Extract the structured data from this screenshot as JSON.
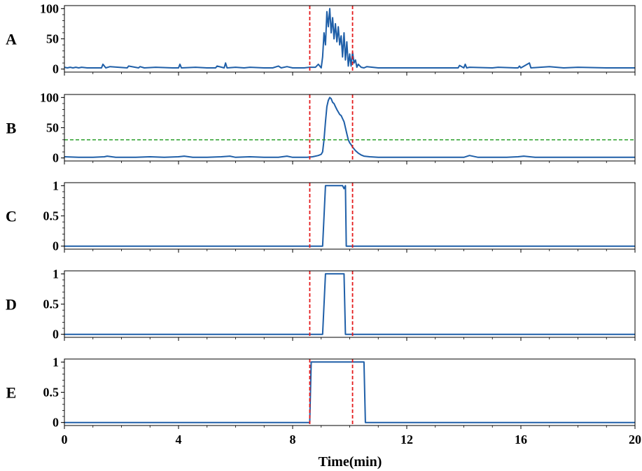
{
  "chart_data": {
    "type": "line",
    "xlabel": "Time(min)",
    "xlim": [
      0,
      20
    ],
    "xticks": [
      0,
      4,
      8,
      12,
      16,
      20
    ],
    "xtick_labels": [
      "0",
      "4",
      "8",
      "12",
      "16",
      "20"
    ],
    "vlines": {
      "x": [
        8.6,
        10.1
      ],
      "color": "#e41a1c",
      "style": "dashed"
    },
    "line_color": "#1f5fa8",
    "panels": [
      {
        "label": "A",
        "ylim": [
          -5,
          105
        ],
        "yticks": [
          0,
          50,
          100
        ],
        "ytick_labels": [
          "0",
          "50",
          "100"
        ],
        "series": [
          {
            "x": [
              0,
              0.1,
              0.2,
              0.3,
              0.4,
              0.5,
              0.6,
              0.8,
              1.0,
              1.3,
              1.35,
              1.45,
              1.6,
              2.2,
              2.25,
              2.6,
              2.65,
              2.8,
              3.2,
              3.8,
              4.0,
              4.05,
              4.1,
              4.6,
              5.0,
              5.3,
              5.35,
              5.6,
              5.65,
              5.7,
              6.0,
              6.3,
              6.5,
              7.0,
              7.3,
              7.5,
              7.6,
              7.8,
              8.0,
              8.4,
              8.6,
              8.8,
              8.9,
              9.0,
              9.05,
              9.1,
              9.15,
              9.2,
              9.25,
              9.3,
              9.35,
              9.4,
              9.45,
              9.5,
              9.55,
              9.6,
              9.65,
              9.7,
              9.75,
              9.8,
              9.85,
              9.9,
              9.95,
              10.0,
              10.05,
              10.1,
              10.15,
              10.2,
              10.25,
              10.3,
              10.4,
              10.5,
              10.6,
              11.0,
              12.0,
              13.0,
              13.8,
              13.85,
              14.0,
              14.05,
              14.1,
              14.2,
              15.0,
              15.2,
              15.8,
              15.9,
              15.95,
              16.0,
              16.3,
              16.35,
              17.0,
              17.5,
              18.0,
              19.0,
              20.0
            ],
            "y": [
              3,
              2,
              3,
              2,
              3,
              2,
              3,
              2,
              2,
              2,
              8,
              2,
              4,
              2,
              5,
              2,
              4,
              2,
              3,
              2,
              2,
              8,
              2,
              3,
              2,
              2,
              5,
              2,
              10,
              2,
              3,
              2,
              3,
              2,
              2,
              5,
              2,
              4,
              2,
              2,
              3,
              3,
              8,
              2,
              20,
              60,
              40,
              95,
              70,
              100,
              60,
              85,
              50,
              75,
              45,
              70,
              40,
              55,
              20,
              60,
              15,
              45,
              5,
              25,
              5,
              28,
              10,
              15,
              3,
              8,
              3,
              2,
              4,
              2,
              2,
              2,
              2,
              6,
              2,
              8,
              2,
              3,
              2,
              3,
              2,
              2,
              5,
              2,
              10,
              2,
              4,
              2,
              3,
              2,
              2
            ]
          }
        ]
      },
      {
        "label": "B",
        "ylim": [
          -5,
          105
        ],
        "yticks": [
          0,
          50,
          100
        ],
        "ytick_labels": [
          "0",
          "50",
          "100"
        ],
        "hline": {
          "y": 30,
          "color": "#2ca02c",
          "style": "dashed"
        },
        "series": [
          {
            "x": [
              0,
              0.5,
              1.0,
              1.4,
              1.5,
              1.8,
              2.5,
              3.0,
              3.5,
              4.0,
              4.2,
              4.5,
              5.0,
              5.5,
              5.8,
              6.0,
              6.5,
              7.0,
              7.5,
              7.8,
              8.0,
              8.5,
              8.7,
              8.9,
              9.0,
              9.05,
              9.1,
              9.15,
              9.2,
              9.25,
              9.3,
              9.35,
              9.4,
              9.45,
              9.5,
              9.55,
              9.6,
              9.65,
              9.7,
              9.75,
              9.8,
              9.85,
              9.9,
              9.95,
              10.0,
              10.05,
              10.1,
              10.2,
              10.3,
              10.4,
              10.5,
              10.7,
              11.0,
              12.0,
              13.0,
              14.0,
              14.2,
              14.5,
              15.0,
              15.5,
              15.9,
              16.1,
              16.5,
              17.0,
              18.0,
              19.0,
              20.0
            ],
            "y": [
              2,
              1,
              1,
              2,
              3,
              1,
              1,
              2,
              1,
              2,
              3,
              1,
              1,
              2,
              3,
              1,
              2,
              1,
              1,
              3,
              1,
              1,
              2,
              4,
              6,
              10,
              30,
              60,
              85,
              95,
              100,
              98,
              92,
              90,
              85,
              80,
              76,
              72,
              70,
              65,
              60,
              50,
              40,
              30,
              25,
              22,
              18,
              12,
              8,
              5,
              3,
              2,
              1,
              1,
              1,
              1,
              4,
              1,
              1,
              1,
              2,
              3,
              1,
              1,
              1,
              1,
              1
            ]
          }
        ]
      },
      {
        "label": "C",
        "ylim": [
          -0.05,
          1.05
        ],
        "yticks": [
          0,
          0.5,
          1
        ],
        "ytick_labels": [
          "0",
          "0.5",
          "1"
        ],
        "series": [
          {
            "x": [
              0,
              9.05,
              9.15,
              9.75,
              9.8,
              9.85,
              9.88,
              20.0
            ],
            "y": [
              0,
              0,
              1,
              1,
              0.95,
              1,
              0,
              0
            ]
          }
        ]
      },
      {
        "label": "D",
        "ylim": [
          -0.05,
          1.05
        ],
        "yticks": [
          0,
          0.5,
          1
        ],
        "ytick_labels": [
          "0",
          "0.5",
          "1"
        ],
        "series": [
          {
            "x": [
              0,
              9.05,
              9.15,
              9.8,
              9.85,
              20.0
            ],
            "y": [
              0,
              0,
              1,
              1,
              0,
              0
            ]
          }
        ]
      },
      {
        "label": "E",
        "ylim": [
          -0.05,
          1.05
        ],
        "yticks": [
          0,
          0.5,
          1
        ],
        "ytick_labels": [
          "0",
          "0.5",
          "1"
        ],
        "series": [
          {
            "x": [
              0,
              8.6,
              8.65,
              10.5,
              10.55,
              20.0
            ],
            "y": [
              0,
              0,
              1,
              1,
              0,
              0
            ]
          }
        ]
      }
    ]
  }
}
